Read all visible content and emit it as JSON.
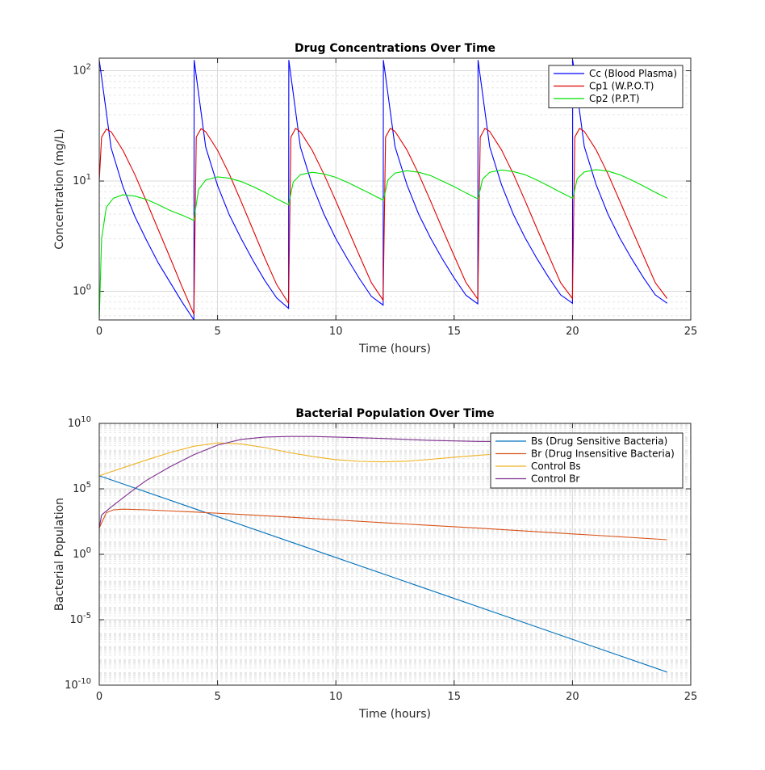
{
  "chart_data": [
    {
      "type": "line",
      "title": "Drug Concentrations Over Time",
      "xlabel": "Time (hours)",
      "ylabel": "Concentration (mg/L)",
      "xlim": [
        0,
        25
      ],
      "ylim": [
        0.55,
        130
      ],
      "yscale": "log",
      "grid": true,
      "legend_location": "top-right",
      "x_ticks": [
        0,
        5,
        10,
        15,
        20,
        25
      ],
      "y_ticks": [
        {
          "value": 1,
          "base": "10",
          "exp": "0"
        },
        {
          "value": 10,
          "base": "10",
          "exp": "1"
        },
        {
          "value": 100,
          "base": "10",
          "exp": "2"
        }
      ],
      "series": [
        {
          "name": "Cc (Blood Plasma)",
          "color": "#0000ff",
          "x": [
            0,
            0.5,
            1,
            1.5,
            2,
            2.5,
            3,
            3.5,
            4,
            4.01,
            4.5,
            5,
            5.5,
            6,
            6.5,
            7,
            7.5,
            8,
            8.01,
            8.5,
            9,
            9.5,
            10,
            10.5,
            11,
            11.5,
            12,
            12.01,
            12.5,
            13,
            13.5,
            14,
            14.5,
            15,
            15.5,
            16,
            16.01,
            16.5,
            17,
            17.5,
            18,
            18.5,
            19,
            19.5,
            20,
            20.01,
            20.5,
            21,
            21.5,
            22,
            22.5,
            23,
            23.5,
            24
          ],
          "y": [
            125,
            20,
            8.9,
            4.8,
            2.9,
            1.8,
            1.2,
            0.8,
            0.55,
            125,
            20.3,
            9.1,
            4.9,
            3.0,
            1.9,
            1.25,
            0.87,
            0.7,
            125,
            20.4,
            9.2,
            5.0,
            3.0,
            1.95,
            1.3,
            0.9,
            0.75,
            125,
            20.5,
            9.3,
            5.0,
            3.05,
            1.97,
            1.32,
            0.92,
            0.77,
            125,
            20.5,
            9.3,
            5.0,
            3.05,
            1.98,
            1.33,
            0.93,
            0.78,
            125,
            20.5,
            9.3,
            5.0,
            3.05,
            1.98,
            1.33,
            0.93,
            0.78
          ]
        },
        {
          "name": "Cp1 (W.P.O.T)",
          "color": "#e00000",
          "x": [
            0,
            0.1,
            0.3,
            0.5,
            1,
            1.5,
            2,
            2.5,
            3,
            3.5,
            4,
            4.1,
            4.3,
            4.5,
            5,
            5.5,
            6,
            6.5,
            7,
            7.5,
            8,
            8.1,
            8.3,
            8.5,
            9,
            9.5,
            10,
            10.5,
            11,
            11.5,
            12,
            12.1,
            12.3,
            12.5,
            13,
            13.5,
            14,
            14.5,
            15,
            15.5,
            16,
            16.1,
            16.3,
            16.5,
            17,
            17.5,
            18,
            18.5,
            19,
            19.5,
            20,
            20.1,
            20.3,
            20.5,
            21,
            21.5,
            22,
            22.5,
            23,
            23.5,
            24
          ],
          "y": [
            10,
            25,
            29.5,
            28,
            19,
            11.5,
            6.5,
            3.6,
            2.0,
            1.1,
            0.62,
            25,
            29.8,
            28,
            19,
            11.5,
            6.5,
            3.6,
            2.0,
            1.15,
            0.78,
            25,
            30,
            28,
            19,
            11.5,
            6.6,
            3.7,
            2.1,
            1.2,
            0.83,
            25,
            30,
            28.2,
            19.2,
            11.6,
            6.6,
            3.7,
            2.1,
            1.2,
            0.85,
            25,
            30,
            28.2,
            19.2,
            11.6,
            6.6,
            3.7,
            2.1,
            1.2,
            0.86,
            25,
            30,
            28.2,
            19.2,
            11.6,
            6.6,
            3.7,
            2.1,
            1.2,
            0.86
          ]
        },
        {
          "name": "Cp2 (P.P.T)",
          "color": "#00e000",
          "x": [
            0,
            0.1,
            0.3,
            0.6,
            1,
            1.5,
            2,
            2.5,
            3,
            3.5,
            4,
            4.05,
            4.2,
            4.5,
            5,
            5.5,
            6,
            6.5,
            7,
            7.5,
            8,
            8.05,
            8.2,
            8.5,
            9,
            9.5,
            10,
            10.5,
            11,
            11.5,
            12,
            12.05,
            12.2,
            12.5,
            13,
            13.5,
            14,
            14.5,
            15,
            15.5,
            16,
            16.05,
            16.2,
            16.5,
            17,
            17.5,
            18,
            18.5,
            19,
            19.5,
            20,
            20.05,
            20.2,
            20.5,
            21,
            21.5,
            22,
            22.5,
            23,
            23.5,
            24
          ],
          "y": [
            0.55,
            3.0,
            5.8,
            7.0,
            7.5,
            7.3,
            6.8,
            6.1,
            5.4,
            4.9,
            4.4,
            5.2,
            8.4,
            10.2,
            10.9,
            10.6,
            9.9,
            8.9,
            7.9,
            6.9,
            6.1,
            6.8,
            9.8,
            11.4,
            12.0,
            11.6,
            10.8,
            9.7,
            8.6,
            7.6,
            6.7,
            7.3,
            10.2,
            11.8,
            12.4,
            12.0,
            11.2,
            10.0,
            8.9,
            7.8,
            6.9,
            7.5,
            10.4,
            12.0,
            12.6,
            12.2,
            11.4,
            10.2,
            9.0,
            7.9,
            7.0,
            7.6,
            10.5,
            12.1,
            12.7,
            12.3,
            11.4,
            10.2,
            9.0,
            7.9,
            7.0
          ]
        }
      ]
    },
    {
      "type": "line",
      "title": "Bacterial Population Over Time",
      "xlabel": "Time (hours)",
      "ylabel": "Bacterial Population",
      "xlim": [
        0,
        25
      ],
      "ylim": [
        1e-10,
        10000000000.0
      ],
      "yscale": "log",
      "grid": true,
      "legend_location": "top-right",
      "x_ticks": [
        0,
        5,
        10,
        15,
        20,
        25
      ],
      "y_ticks": [
        {
          "value": 1e-10,
          "base": "10",
          "exp": "-10"
        },
        {
          "value": 1e-05,
          "base": "10",
          "exp": "-5"
        },
        {
          "value": 1,
          "base": "10",
          "exp": "0"
        },
        {
          "value": 100000.0,
          "base": "10",
          "exp": "5"
        },
        {
          "value": 10000000000.0,
          "base": "10",
          "exp": "10"
        }
      ],
      "series": [
        {
          "name": "Bs (Drug Sensitive Bacteria)",
          "color": "#0072bd",
          "x": [
            0,
            24
          ],
          "y": [
            1000000.0,
            1e-09
          ]
        },
        {
          "name": "Br (Drug Insensitive Bacteria)",
          "color": "#d95319",
          "x": [
            0,
            0.3,
            0.6,
            1,
            2,
            4,
            6,
            8,
            10,
            12,
            14,
            16,
            18,
            20,
            22,
            24
          ],
          "y": [
            100,
            1500,
            2500,
            2800,
            2500,
            1700,
            1100,
            700,
            420,
            260,
            160,
            100,
            60,
            36,
            22,
            13
          ]
        },
        {
          "name": "Control Bs",
          "color": "#edb120",
          "x": [
            0,
            1,
            2,
            3,
            4,
            5,
            6,
            7,
            8,
            9,
            10,
            11,
            12,
            13,
            14,
            15,
            16,
            16.5
          ],
          "y": [
            1000000.0,
            4000000.0,
            16000000.0,
            60000000.0,
            180000000.0,
            320000000.0,
            270000000.0,
            140000000.0,
            60000000.0,
            30000000.0,
            17000000.0,
            12500000.0,
            11500000.0,
            13000000.0,
            18000000.0,
            26000000.0,
            36000000.0,
            42000000.0
          ]
        },
        {
          "name": "Control Br",
          "color": "#7e2f8e",
          "x": [
            0,
            0.1,
            0.5,
            1,
            1.5,
            2,
            3,
            4,
            5,
            6,
            7,
            8,
            9,
            10,
            12,
            14,
            16,
            18,
            20,
            22,
            24
          ],
          "y": [
            100.0,
            1000.0,
            4000.0,
            20000.0,
            100000.0,
            450000.0,
            5000000.0,
            40000000.0,
            220000000.0,
            600000000.0,
            900000000.0,
            1000000000.0,
            1000000000.0,
            900000000.0,
            700000000.0,
            500000000.0,
            420000000.0,
            400000000.0,
            390000000.0,
            380000000.0,
            380000000.0
          ]
        }
      ]
    }
  ]
}
